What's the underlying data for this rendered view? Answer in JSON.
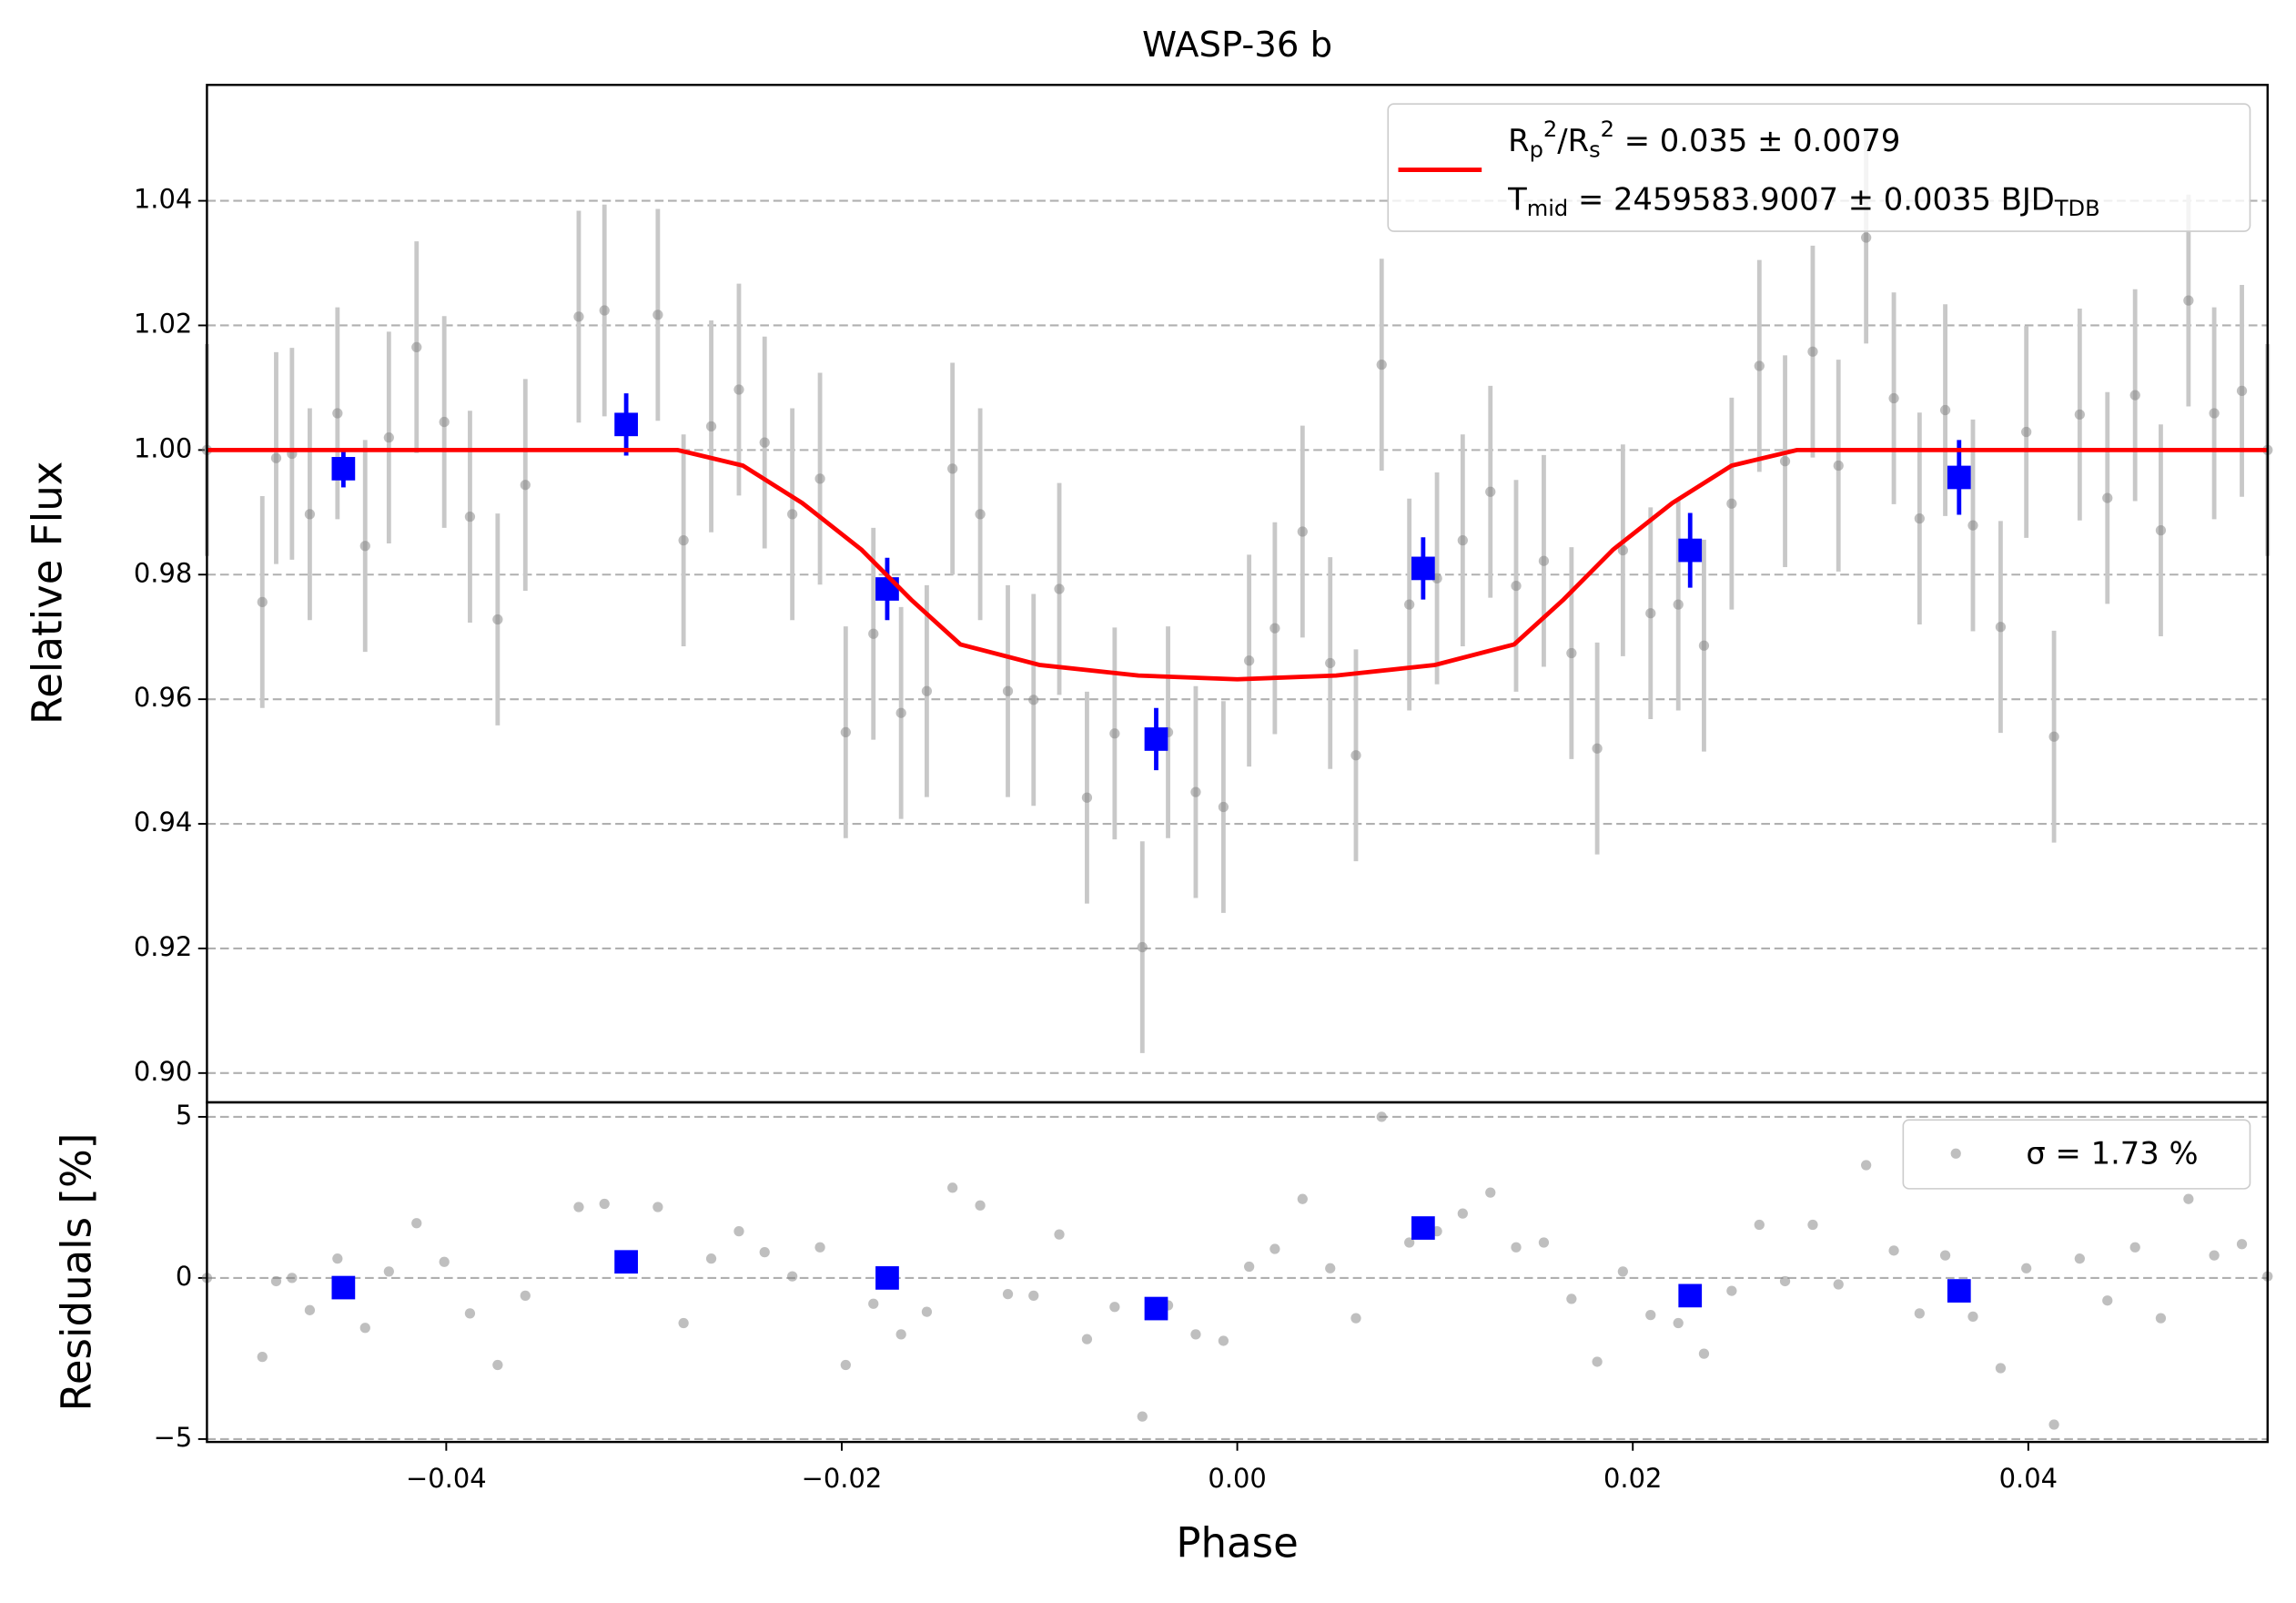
{
  "chart_data": [
    {
      "type": "scatter",
      "title": "WASP-36 b",
      "ylabel": "Relative Flux",
      "xlim": [
        -0.0521,
        0.0521
      ],
      "ylim": [
        0.8953,
        1.0586
      ],
      "yticks": [
        {
          "value": 0.9,
          "label": "0.90"
        },
        0.92,
        0.94,
        0.96,
        0.98,
        {
          "value": 1.0,
          "label": "1.00"
        },
        1.02,
        1.04
      ],
      "grid": true,
      "legend": "upper right",
      "series": [
        {
          "color": "#808080",
          "yerr": 0.017,
          "x": [
            -0.0521,
            -0.0493,
            -0.0486,
            -0.0478,
            -0.0469,
            -0.0455,
            -0.0441,
            -0.0429,
            -0.0415,
            -0.0401,
            -0.0388,
            -0.0374,
            -0.036,
            -0.0333,
            -0.032,
            -0.0293,
            -0.028,
            -0.0266,
            -0.0252,
            -0.0239,
            -0.0225,
            -0.0211,
            -0.0198,
            -0.0184,
            -0.017,
            -0.0157,
            -0.0144,
            -0.013,
            -0.0116,
            -0.0103,
            -0.009,
            -0.0076,
            -0.0062,
            -0.0048,
            -0.0035,
            -0.0021,
            -0.0007,
            0.0006,
            0.0019,
            0.0033,
            0.0047,
            0.006,
            0.0073,
            0.0087,
            0.0101,
            0.0114,
            0.0128,
            0.0141,
            0.0155,
            0.0169,
            0.0182,
            0.0195,
            0.0209,
            0.0223,
            0.0236,
            0.025,
            0.0264,
            0.0277,
            0.0291,
            0.0304,
            0.0318,
            0.0332,
            0.0345,
            0.0358,
            0.0372,
            0.0386,
            0.0399,
            0.0413,
            0.0426,
            0.044,
            0.0454,
            0.0467,
            0.0481,
            0.0494,
            0.0508,
            0.0521
          ],
          "values": [
            1.0,
            0.9756,
            0.9987,
            0.9994,
            0.9897,
            1.0059,
            0.9846,
            1.002,
            1.0165,
            1.0045,
            0.9893,
            0.9728,
            0.9944,
            1.0214,
            1.0224,
            1.0217,
            0.9855,
            1.0038,
            1.0097,
            1.0012,
            0.9897,
            0.9954,
            0.9547,
            0.9705,
            0.9578,
            0.9613,
            0.997,
            0.9897,
            0.9613,
            0.9599,
            0.9777,
            0.9442,
            0.9545,
            0.9202,
            0.9547,
            0.9451,
            0.9427,
            0.9662,
            0.9714,
            0.9869,
            0.9658,
            0.951,
            1.0137,
            0.9752,
            0.9794,
            0.9855,
            0.9933,
            0.9782,
            0.9822,
            0.9674,
            0.9521,
            0.9839,
            0.9738,
            0.9752,
            0.9686,
            0.9914,
            1.0135,
            0.9982,
            1.0158,
            0.9975,
            1.0341,
            1.0083,
            0.989,
            1.0064,
            0.9879,
            0.9716,
            1.0029,
            0.954,
            1.0057,
            0.9923,
            1.0088,
            0.9871,
            1.024,
            1.0059,
            1.0095,
            1.0
          ]
        },
        {
          "color": "#0000ff",
          "x": [
            -0.0452,
            -0.0309,
            -0.0177,
            -0.0041,
            0.0094,
            0.0229,
            0.0365
          ],
          "values": [
            0.997,
            1.0041,
            0.9777,
            0.9536,
            0.981,
            0.9839,
            0.9956
          ],
          "yerr": [
            0.003,
            0.005,
            0.005,
            0.005,
            0.005,
            0.006,
            0.006
          ]
        },
        {
          "type": "line",
          "color": "#ff0000",
          "name": [
            "Rp2/Rs2 = 0.035 ± 0.0079",
            "Tmid = 2459583.9007 ± 0.0035 BJDTDB"
          ],
          "x": [
            -0.0521,
            -0.0283,
            -0.025,
            -0.022,
            -0.019,
            -0.0165,
            -0.014,
            -0.01,
            -0.005,
            0,
            0.005,
            0.01,
            0.014,
            0.0165,
            0.019,
            0.022,
            0.025,
            0.0283,
            0.0521
          ],
          "values": [
            1.0,
            1.0,
            0.9975,
            0.9915,
            0.984,
            0.976,
            0.9688,
            0.9655,
            0.9638,
            0.9632,
            0.9638,
            0.9655,
            0.9688,
            0.976,
            0.984,
            0.9915,
            0.9975,
            1.0,
            1.0
          ]
        }
      ]
    },
    {
      "type": "scatter",
      "xlabel": "Phase",
      "ylabel": "Residuals [%]",
      "xlim": [
        -0.0521,
        0.0521
      ],
      "xticks": [
        {
          "value": -0.04,
          "label": "−0.04"
        },
        {
          "value": -0.02,
          "label": "−0.02"
        },
        {
          "value": 0,
          "label": "0.00"
        },
        0.02,
        0.04
      ],
      "ylim": [
        -5.09,
        5.45
      ],
      "yticks": [
        {
          "value": -5,
          "label": "−5"
        },
        0,
        5
      ],
      "grid": true,
      "legend": "upper right",
      "series": [
        {
          "name": "σ = 1.73 %",
          "color": "#808080",
          "x": [
            -0.0521,
            -0.0493,
            -0.0486,
            -0.0478,
            -0.0469,
            -0.0455,
            -0.0441,
            -0.0429,
            -0.0415,
            -0.0401,
            -0.0388,
            -0.0374,
            -0.036,
            -0.0333,
            -0.032,
            -0.0293,
            -0.028,
            -0.0266,
            -0.0252,
            -0.0239,
            -0.0225,
            -0.0211,
            -0.0198,
            -0.0184,
            -0.017,
            -0.0157,
            -0.0144,
            -0.013,
            -0.0116,
            -0.0103,
            -0.009,
            -0.0076,
            -0.0062,
            -0.0048,
            -0.0035,
            -0.0021,
            -0.0007,
            0.0006,
            0.0019,
            0.0033,
            0.0047,
            0.006,
            0.0073,
            0.0087,
            0.0101,
            0.0114,
            0.0128,
            0.0141,
            0.0155,
            0.0169,
            0.0182,
            0.0195,
            0.0209,
            0.0223,
            0.0236,
            0.025,
            0.0264,
            0.0277,
            0.0291,
            0.0304,
            0.0318,
            0.0332,
            0.0345,
            0.0358,
            0.0372,
            0.0386,
            0.0399,
            0.0413,
            0.0426,
            0.044,
            0.0454,
            0.0467,
            0.0481,
            0.0494,
            0.0508,
            0.0521
          ],
          "values": [
            0,
            -2.45,
            -0.1,
            0,
            -1.0,
            0.6,
            -1.55,
            0.2,
            1.7,
            0.5,
            -1.1,
            -2.7,
            -0.55,
            2.2,
            2.3,
            2.2,
            -1.4,
            0.6,
            1.45,
            0.8,
            0.05,
            0.95,
            -2.7,
            -0.8,
            -1.75,
            -1.05,
            2.8,
            2.25,
            -0.5,
            -0.55,
            1.35,
            -1.9,
            -0.9,
            -4.3,
            -0.85,
            -1.75,
            -1.95,
            0.35,
            0.9,
            2.45,
            0.3,
            -1.25,
            5.0,
            1.1,
            1.45,
            2.0,
            2.65,
            0.95,
            1.1,
            -0.65,
            -2.6,
            0.2,
            -1.15,
            -1.4,
            -2.35,
            -0.4,
            1.65,
            -0.1,
            1.65,
            -0.2,
            3.5,
            0.85,
            -1.1,
            0.7,
            -1.2,
            -2.8,
            0.3,
            -4.55,
            0.6,
            -0.7,
            0.95,
            -1.25,
            2.45,
            0.7,
            1.05,
            0.05
          ]
        },
        {
          "color": "#0000ff",
          "x": [
            -0.0452,
            -0.0309,
            -0.0177,
            -0.0041,
            0.0094,
            0.0229,
            0.0365
          ],
          "values": [
            -0.3,
            0.5,
            0.0,
            -0.95,
            1.55,
            -0.55,
            -0.4
          ]
        }
      ]
    }
  ]
}
